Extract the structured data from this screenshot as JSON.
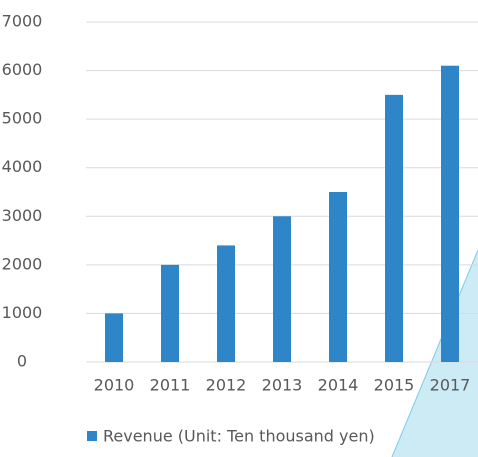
{
  "chart_data": {
    "type": "bar",
    "categories": [
      "2010",
      "2011",
      "2012",
      "2013",
      "2014",
      "2015",
      "2017"
    ],
    "series": [
      {
        "name": "Revenue (Unit: Ten thousand yen)",
        "color": "#2e86c9",
        "values": [
          1000,
          2000,
          2400,
          3000,
          3500,
          5500,
          6100
        ]
      }
    ],
    "ylim": [
      0,
      7000
    ],
    "yticks": [
      0,
      1000,
      2000,
      3000,
      4000,
      5000,
      6000,
      7000
    ],
    "grid": true,
    "legend": "bottom"
  }
}
